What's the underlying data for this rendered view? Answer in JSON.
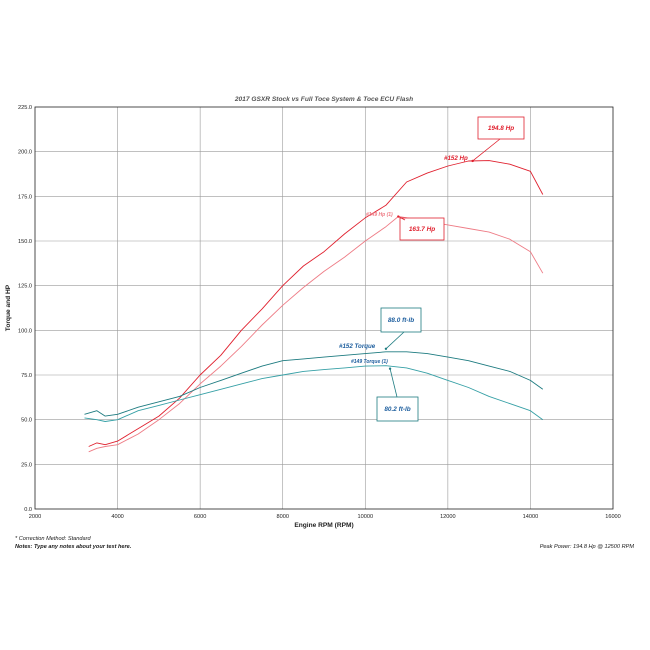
{
  "chart_data": {
    "type": "line",
    "title": "2017 GSXR Stock vs Full Toce System & Toce ECU Flash",
    "xlabel": "Engine RPM (RPM)",
    "ylabel": "Torque and HP",
    "xlim": [
      2000,
      16000
    ],
    "ylim": [
      0,
      225
    ],
    "x_ticks": [
      "2000",
      "4000",
      "6000",
      "8000",
      "10000",
      "12000",
      "14000",
      "16000"
    ],
    "y_ticks": [
      "0.0",
      "25.0",
      "50.0",
      "75.0",
      "100.0",
      "125.0",
      "150.0",
      "175.0",
      "200.0",
      "225.0"
    ],
    "grid": true,
    "colors": {
      "hp_152": "#e0202e",
      "hp_149": "#ee7c86",
      "tq_152": "#1d7b80",
      "tq_149": "#36a0a6"
    },
    "series": [
      {
        "name": "#152 Hp",
        "color": "#e0202e",
        "points": [
          [
            3300,
            35
          ],
          [
            3500,
            37
          ],
          [
            3700,
            36
          ],
          [
            4000,
            38
          ],
          [
            4500,
            45
          ],
          [
            5000,
            52
          ],
          [
            5500,
            62
          ],
          [
            6000,
            75
          ],
          [
            6500,
            86
          ],
          [
            7000,
            100
          ],
          [
            7500,
            112
          ],
          [
            8000,
            125
          ],
          [
            8500,
            136
          ],
          [
            9000,
            144
          ],
          [
            9500,
            154
          ],
          [
            10000,
            163
          ],
          [
            10500,
            170
          ],
          [
            11000,
            183
          ],
          [
            11500,
            188
          ],
          [
            12000,
            192
          ],
          [
            12500,
            194.8
          ],
          [
            13000,
            195
          ],
          [
            13500,
            193
          ],
          [
            14000,
            189
          ],
          [
            14300,
            176
          ]
        ]
      },
      {
        "name": "#149 Hp (1)",
        "color": "#ee7c86",
        "points": [
          [
            3300,
            32
          ],
          [
            3500,
            34
          ],
          [
            3700,
            35
          ],
          [
            4000,
            36
          ],
          [
            4500,
            42
          ],
          [
            5000,
            50
          ],
          [
            5500,
            59
          ],
          [
            6000,
            70
          ],
          [
            6500,
            80
          ],
          [
            7000,
            91
          ],
          [
            7500,
            103
          ],
          [
            8000,
            114
          ],
          [
            8500,
            124
          ],
          [
            9000,
            133
          ],
          [
            9500,
            141
          ],
          [
            10000,
            150
          ],
          [
            10500,
            158
          ],
          [
            10800,
            163.7
          ],
          [
            11000,
            163
          ],
          [
            11500,
            161
          ],
          [
            12000,
            159
          ],
          [
            12500,
            157
          ],
          [
            13000,
            155
          ],
          [
            13500,
            151
          ],
          [
            14000,
            144
          ],
          [
            14300,
            132
          ]
        ]
      },
      {
        "name": "#152 Torque",
        "color": "#1d7b80",
        "points": [
          [
            3200,
            53
          ],
          [
            3500,
            55
          ],
          [
            3700,
            52
          ],
          [
            4000,
            53
          ],
          [
            4500,
            57
          ],
          [
            5000,
            60
          ],
          [
            5500,
            63
          ],
          [
            6000,
            68
          ],
          [
            6500,
            72
          ],
          [
            7000,
            76
          ],
          [
            7500,
            80
          ],
          [
            8000,
            83
          ],
          [
            8500,
            84
          ],
          [
            9000,
            85
          ],
          [
            9500,
            86
          ],
          [
            10000,
            87
          ],
          [
            10500,
            88
          ],
          [
            11000,
            88
          ],
          [
            11500,
            87
          ],
          [
            12000,
            85
          ],
          [
            12500,
            83
          ],
          [
            13000,
            80
          ],
          [
            13500,
            77
          ],
          [
            14000,
            72
          ],
          [
            14300,
            67
          ]
        ]
      },
      {
        "name": "#149 Torque (1)",
        "color": "#36a0a6",
        "points": [
          [
            3200,
            51
          ],
          [
            3500,
            50
          ],
          [
            3700,
            49
          ],
          [
            4000,
            50
          ],
          [
            4500,
            55
          ],
          [
            5000,
            58
          ],
          [
            5500,
            61
          ],
          [
            6000,
            64
          ],
          [
            6500,
            67
          ],
          [
            7000,
            70
          ],
          [
            7500,
            73
          ],
          [
            8000,
            75
          ],
          [
            8500,
            77
          ],
          [
            9000,
            78
          ],
          [
            9500,
            79
          ],
          [
            10000,
            80
          ],
          [
            10500,
            80.2
          ],
          [
            11000,
            79
          ],
          [
            11500,
            76
          ],
          [
            12000,
            72
          ],
          [
            12500,
            68
          ],
          [
            13000,
            63
          ],
          [
            13500,
            59
          ],
          [
            14000,
            55
          ],
          [
            14300,
            50
          ]
        ]
      }
    ],
    "annotations": [
      {
        "text": "194.8 Hp",
        "color": "#e0202e",
        "x": 12600,
        "y": 194.8
      },
      {
        "text": "#152 Hp",
        "color": "#e0202e"
      },
      {
        "text": "#149 Hp (1)",
        "color": "#ee7c86"
      },
      {
        "text": "163.7 Hp",
        "color": "#e0202e",
        "x": 10800,
        "y": 163.7
      },
      {
        "text": "88.0 ft-lb",
        "color": "#1d5e9e",
        "x": 10500,
        "y": 88.0
      },
      {
        "text": "#152 Torque",
        "color": "#1d5e9e"
      },
      {
        "text": "#149 Torque (1)",
        "color": "#1d5e9e"
      },
      {
        "text": "80.2 ft-lb",
        "color": "#1d5e9e",
        "x": 10600,
        "y": 80.2
      }
    ]
  },
  "footer": {
    "correction": "* Correction Method: Standard",
    "notes": "Notes: Type any notes about your test here.",
    "peak": "Peak Power: 194.8 Hp @ 12500 RPM"
  }
}
